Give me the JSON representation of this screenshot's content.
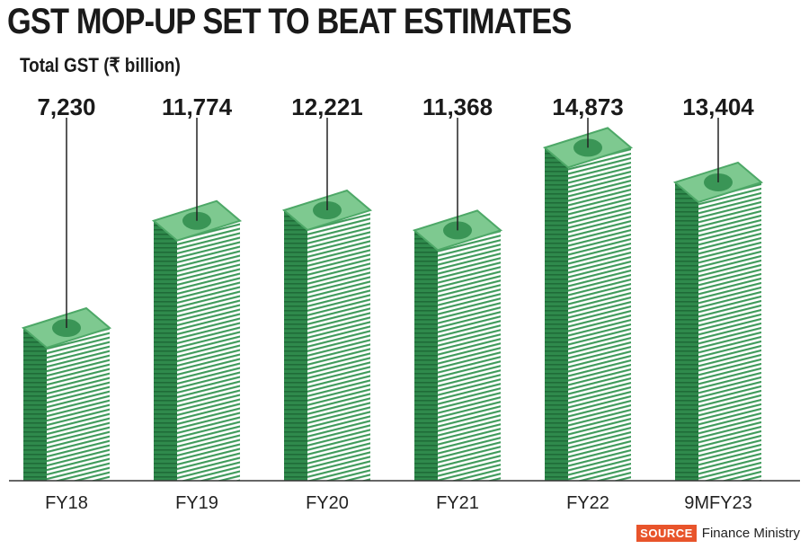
{
  "chart_data": {
    "type": "bar",
    "title": "GST MOP-UP SET TO BEAT ESTIMATES",
    "ylabel": "Total GST (₹ billion)",
    "xlabel": "",
    "categories": [
      "FY18",
      "FY19",
      "FY20",
      "FY21",
      "FY22",
      "9MFY23"
    ],
    "values": [
      7230,
      11774,
      12221,
      11368,
      14873,
      13404
    ],
    "value_labels": [
      "7,230",
      "11,774",
      "12,221",
      "11,368",
      "14,873",
      "13,404"
    ],
    "ylim": [
      0,
      16000
    ],
    "grid": false,
    "legend": "none"
  },
  "source": {
    "tag": "SOURCE",
    "text": "Finance Ministry"
  },
  "colors": {
    "bill_front": "#ffffff",
    "bill_stripe": "#3e9a5a",
    "bill_side": "#2f8a4c",
    "bill_top": "#7ec990",
    "bill_top_edge": "#4da867",
    "coin": "#3a9556",
    "text": "#1a1a1a"
  }
}
